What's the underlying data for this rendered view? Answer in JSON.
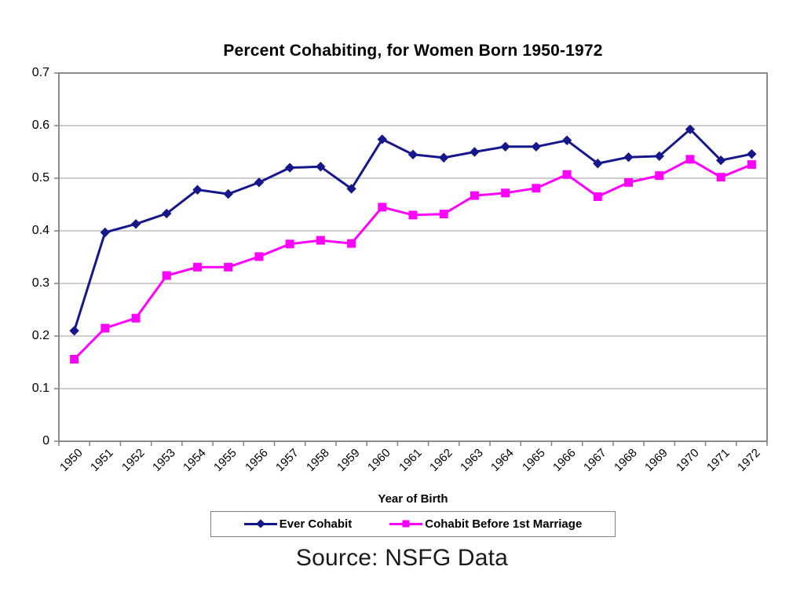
{
  "slide": {
    "source_caption": "Source: NSFG Data"
  },
  "chart_data": {
    "type": "line",
    "title": "Percent Cohabiting, for Women Born 1950-1972",
    "xlabel": "Year of Birth",
    "ylabel": "",
    "ylim": [
      0,
      0.7
    ],
    "grid": true,
    "legend_position": "bottom",
    "yticks": [
      0,
      0.1,
      0.2,
      0.3,
      0.4,
      0.5,
      0.6,
      0.7
    ],
    "ytick_labels": [
      "0",
      "0.1",
      "0.2",
      "0.3",
      "0.4",
      "0.5",
      "0.6",
      "0.7"
    ],
    "categories": [
      "1950",
      "1951",
      "1952",
      "1953",
      "1954",
      "1955",
      "1956",
      "1957",
      "1958",
      "1959",
      "1960",
      "1961",
      "1962",
      "1963",
      "1964",
      "1965",
      "1966",
      "1967",
      "1968",
      "1969",
      "1970",
      "1971",
      "1972"
    ],
    "series": [
      {
        "name": "Ever Cohabit",
        "color": "#17178c",
        "marker": "diamond",
        "values": [
          0.21,
          0.397,
          0.413,
          0.433,
          0.478,
          0.47,
          0.492,
          0.52,
          0.522,
          0.48,
          0.574,
          0.545,
          0.539,
          0.55,
          0.56,
          0.56,
          0.572,
          0.528,
          0.54,
          0.542,
          0.593,
          0.534,
          0.546
        ]
      },
      {
        "name": "Cohabit Before 1st Marriage",
        "color": "#ff00ff",
        "marker": "square",
        "values": [
          0.156,
          0.215,
          0.234,
          0.315,
          0.331,
          0.331,
          0.351,
          0.375,
          0.382,
          0.376,
          0.445,
          0.43,
          0.432,
          0.467,
          0.472,
          0.481,
          0.507,
          0.465,
          0.492,
          0.505,
          0.536,
          0.502,
          0.526
        ]
      }
    ],
    "style": {
      "gridline_color": "#9c9c9c",
      "frame_color": "#808080",
      "tick_color": "#808080",
      "plot_background": "#ffffff"
    }
  }
}
